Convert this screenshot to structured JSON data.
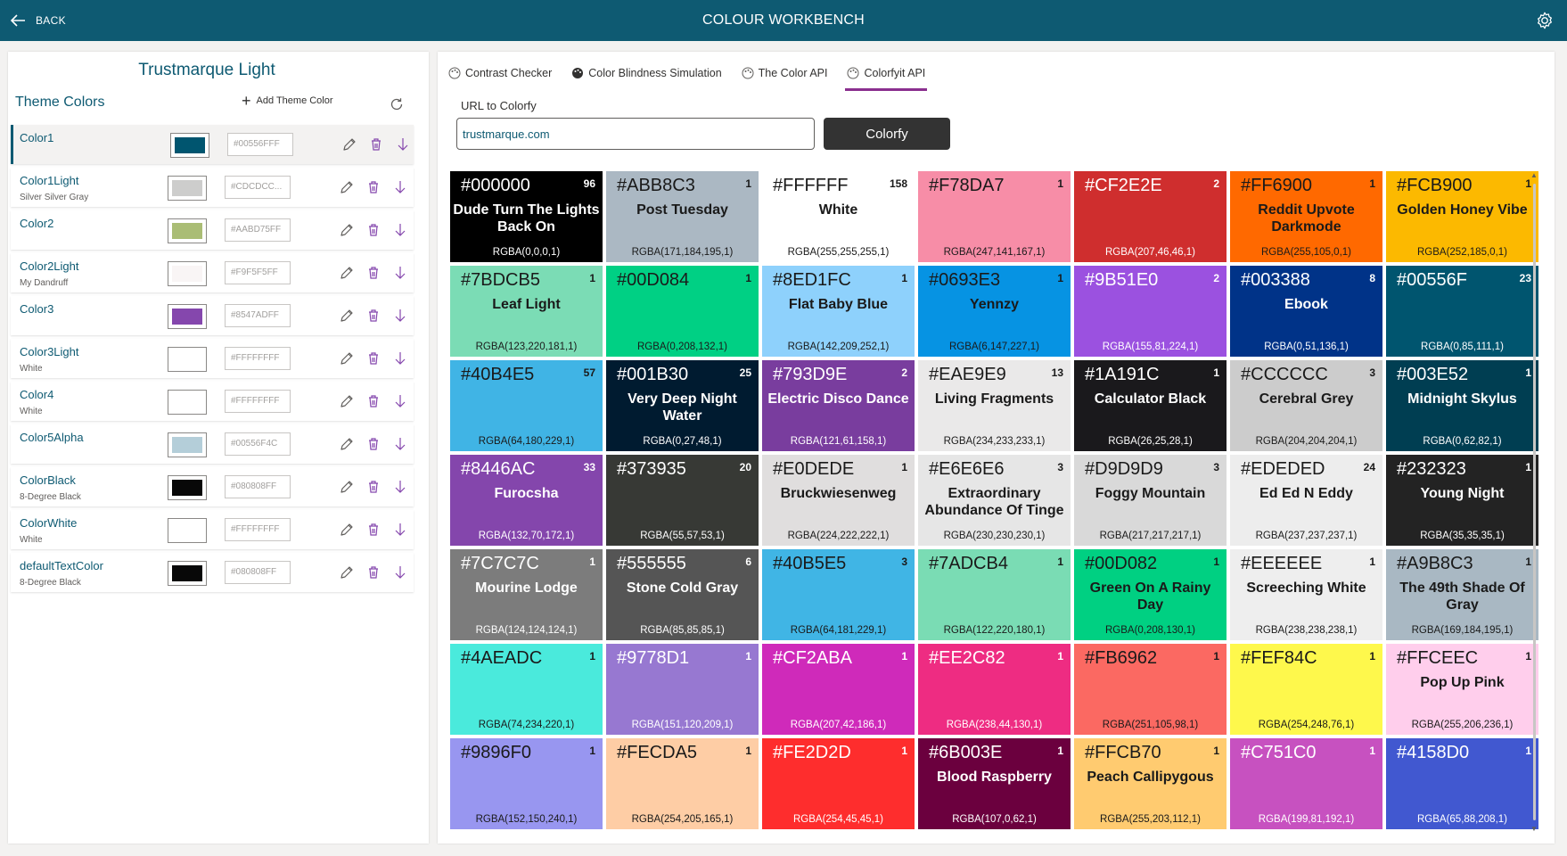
{
  "header": {
    "back_label": "BACK",
    "title": "COLOUR WORKBENCH"
  },
  "left": {
    "theme_name": "Trustmarque Light",
    "section_title": "Theme Colors",
    "add_label": "Add Theme Color",
    "rows": [
      {
        "name": "Color1",
        "sub": "",
        "swatch": "#00556F",
        "hex": "#00556FFF"
      },
      {
        "name": "Color1Light",
        "sub": "Silver Silver Gray",
        "swatch": "#CDCDCC",
        "hex": "#CDCDCC..."
      },
      {
        "name": "Color2",
        "sub": "",
        "swatch": "#AABD75",
        "hex": "#AABD75FF"
      },
      {
        "name": "Color2Light",
        "sub": "My Dandruff",
        "swatch": "#F9F5F5",
        "hex": "#F9F5F5FF"
      },
      {
        "name": "Color3",
        "sub": "",
        "swatch": "#8547AD",
        "hex": "#8547ADFF"
      },
      {
        "name": "Color3Light",
        "sub": "White",
        "swatch": "#FFFFFF",
        "hex": "#FFFFFFFF"
      },
      {
        "name": "Color4",
        "sub": "White",
        "swatch": "#FFFFFF",
        "hex": "#FFFFFFFF"
      },
      {
        "name": "Color5Alpha",
        "sub": "",
        "swatch": "#B4CED9",
        "hex": "#00556F4C"
      },
      {
        "name": "ColorBlack",
        "sub": "8-Degree Black",
        "swatch": "#080808",
        "hex": "#080808FF"
      },
      {
        "name": "ColorWhite",
        "sub": "White",
        "swatch": "#FFFFFF",
        "hex": "#FFFFFFFF"
      },
      {
        "name": "defaultTextColor",
        "sub": "8-Degree Black",
        "swatch": "#080808",
        "hex": "#080808FF"
      }
    ]
  },
  "tabs": [
    "Contrast Checker",
    "Color Blindness Simulation",
    "The Color API",
    "Colorfyit API"
  ],
  "url_label": "URL to Colorfy",
  "url_value": "trustmarque.com",
  "colorfy_label": "Colorfy",
  "colors": {
    "accent": "#0e5a72",
    "tab_underline": "#8a2f8f"
  },
  "swatches": [
    {
      "hex": "#000000",
      "count": "96",
      "name": "Dude Turn The Lights Back On",
      "rgba": "RGBA(0,0,0,1)",
      "bg": "#000000",
      "fg": "#ffffff"
    },
    {
      "hex": "#ABB8C3",
      "count": "1",
      "name": "Post Tuesday",
      "rgba": "RGBA(171,184,195,1)",
      "bg": "#ABB8C3",
      "fg": "#1a1a1a"
    },
    {
      "hex": "#FFFFFF",
      "count": "158",
      "name": "White",
      "rgba": "RGBA(255,255,255,1)",
      "bg": "#FFFFFF",
      "fg": "#1a1a1a"
    },
    {
      "hex": "#F78DA7",
      "count": "1",
      "name": "",
      "rgba": "RGBA(247,141,167,1)",
      "bg": "#F78DA7",
      "fg": "#1a1a1a"
    },
    {
      "hex": "#CF2E2E",
      "count": "2",
      "name": "",
      "rgba": "RGBA(207,46,46,1)",
      "bg": "#CF2E2E",
      "fg": "#ffffff"
    },
    {
      "hex": "#FF6900",
      "count": "1",
      "name": "Reddit Upvote Darkmode",
      "rgba": "RGBA(255,105,0,1)",
      "bg": "#FF6900",
      "fg": "#1a1a1a"
    },
    {
      "hex": "#FCB900",
      "count": "1",
      "name": "Golden Honey Vibe",
      "rgba": "RGBA(252,185,0,1)",
      "bg": "#FCB900",
      "fg": "#1a1a1a"
    },
    {
      "hex": "#7BDCB5",
      "count": "1",
      "name": "Leaf Light",
      "rgba": "RGBA(123,220,181,1)",
      "bg": "#7BDCB5",
      "fg": "#1a1a1a"
    },
    {
      "hex": "#00D084",
      "count": "1",
      "name": "",
      "rgba": "RGBA(0,208,132,1)",
      "bg": "#00D084",
      "fg": "#1a1a1a"
    },
    {
      "hex": "#8ED1FC",
      "count": "1",
      "name": "Flat Baby Blue",
      "rgba": "RGBA(142,209,252,1)",
      "bg": "#8ED1FC",
      "fg": "#1a1a1a"
    },
    {
      "hex": "#0693E3",
      "count": "1",
      "name": "Yennzy",
      "rgba": "RGBA(6,147,227,1)",
      "bg": "#0693E3",
      "fg": "#1a1a1a"
    },
    {
      "hex": "#9B51E0",
      "count": "2",
      "name": "",
      "rgba": "RGBA(155,81,224,1)",
      "bg": "#9B51E0",
      "fg": "#ffffff"
    },
    {
      "hex": "#003388",
      "count": "8",
      "name": "Ebook",
      "rgba": "RGBA(0,51,136,1)",
      "bg": "#003388",
      "fg": "#ffffff"
    },
    {
      "hex": "#00556F",
      "count": "23",
      "name": "",
      "rgba": "RGBA(0,85,111,1)",
      "bg": "#00556F",
      "fg": "#ffffff"
    },
    {
      "hex": "#40B4E5",
      "count": "57",
      "name": "",
      "rgba": "RGBA(64,180,229,1)",
      "bg": "#40B4E5",
      "fg": "#1a1a1a"
    },
    {
      "hex": "#001B30",
      "count": "25",
      "name": "Very Deep Night Water",
      "rgba": "RGBA(0,27,48,1)",
      "bg": "#001B30",
      "fg": "#ffffff"
    },
    {
      "hex": "#793D9E",
      "count": "2",
      "name": "Electric Disco Dance",
      "rgba": "RGBA(121,61,158,1)",
      "bg": "#793D9E",
      "fg": "#ffffff"
    },
    {
      "hex": "#EAE9E9",
      "count": "13",
      "name": "Living Fragments",
      "rgba": "RGBA(234,233,233,1)",
      "bg": "#EAE9E9",
      "fg": "#1a1a1a"
    },
    {
      "hex": "#1A191C",
      "count": "1",
      "name": "Calculator Black",
      "rgba": "RGBA(26,25,28,1)",
      "bg": "#1A191C",
      "fg": "#ffffff"
    },
    {
      "hex": "#CCCCCC",
      "count": "3",
      "name": "Cerebral Grey",
      "rgba": "RGBA(204,204,204,1)",
      "bg": "#CCCCCC",
      "fg": "#1a1a1a"
    },
    {
      "hex": "#003E52",
      "count": "1",
      "name": "Midnight Skylus",
      "rgba": "RGBA(0,62,82,1)",
      "bg": "#003E52",
      "fg": "#ffffff"
    },
    {
      "hex": "#8446AC",
      "count": "33",
      "name": "Furocsha",
      "rgba": "RGBA(132,70,172,1)",
      "bg": "#8446AC",
      "fg": "#ffffff"
    },
    {
      "hex": "#373935",
      "count": "20",
      "name": "",
      "rgba": "RGBA(55,57,53,1)",
      "bg": "#373935",
      "fg": "#ffffff"
    },
    {
      "hex": "#E0DEDE",
      "count": "1",
      "name": "Bruckwiesenweg",
      "rgba": "RGBA(224,222,222,1)",
      "bg": "#E0DEDE",
      "fg": "#1a1a1a"
    },
    {
      "hex": "#E6E6E6",
      "count": "3",
      "name": "Extraordinary Abundance Of Tinge",
      "rgba": "RGBA(230,230,230,1)",
      "bg": "#E6E6E6",
      "fg": "#1a1a1a"
    },
    {
      "hex": "#D9D9D9",
      "count": "3",
      "name": "Foggy Mountain",
      "rgba": "RGBA(217,217,217,1)",
      "bg": "#D9D9D9",
      "fg": "#1a1a1a"
    },
    {
      "hex": "#EDEDED",
      "count": "24",
      "name": "Ed Ed N Eddy",
      "rgba": "RGBA(237,237,237,1)",
      "bg": "#EDEDED",
      "fg": "#1a1a1a"
    },
    {
      "hex": "#232323",
      "count": "1",
      "name": "Young Night",
      "rgba": "RGBA(35,35,35,1)",
      "bg": "#232323",
      "fg": "#ffffff"
    },
    {
      "hex": "#7C7C7C",
      "count": "1",
      "name": "Mourine Lodge",
      "rgba": "RGBA(124,124,124,1)",
      "bg": "#7C7C7C",
      "fg": "#ffffff"
    },
    {
      "hex": "#555555",
      "count": "6",
      "name": "Stone Cold Gray",
      "rgba": "RGBA(85,85,85,1)",
      "bg": "#555555",
      "fg": "#ffffff"
    },
    {
      "hex": "#40B5E5",
      "count": "3",
      "name": "",
      "rgba": "RGBA(64,181,229,1)",
      "bg": "#40B5E5",
      "fg": "#1a1a1a"
    },
    {
      "hex": "#7ADCB4",
      "count": "1",
      "name": "",
      "rgba": "RGBA(122,220,180,1)",
      "bg": "#7ADCB4",
      "fg": "#1a1a1a"
    },
    {
      "hex": "#00D082",
      "count": "1",
      "name": "Green On A Rainy Day",
      "rgba": "RGBA(0,208,130,1)",
      "bg": "#00D082",
      "fg": "#1a1a1a"
    },
    {
      "hex": "#EEEEEE",
      "count": "1",
      "name": "Screeching White",
      "rgba": "RGBA(238,238,238,1)",
      "bg": "#EEEEEE",
      "fg": "#1a1a1a"
    },
    {
      "hex": "#A9B8C3",
      "count": "1",
      "name": "The 49th Shade Of Gray",
      "rgba": "RGBA(169,184,195,1)",
      "bg": "#A9B8C3",
      "fg": "#1a1a1a"
    },
    {
      "hex": "#4AEADC",
      "count": "1",
      "name": "",
      "rgba": "RGBA(74,234,220,1)",
      "bg": "#4AEADC",
      "fg": "#1a1a1a"
    },
    {
      "hex": "#9778D1",
      "count": "1",
      "name": "",
      "rgba": "RGBA(151,120,209,1)",
      "bg": "#9778D1",
      "fg": "#ffffff"
    },
    {
      "hex": "#CF2ABA",
      "count": "1",
      "name": "",
      "rgba": "RGBA(207,42,186,1)",
      "bg": "#CF2ABA",
      "fg": "#ffffff"
    },
    {
      "hex": "#EE2C82",
      "count": "1",
      "name": "",
      "rgba": "RGBA(238,44,130,1)",
      "bg": "#EE2C82",
      "fg": "#ffffff"
    },
    {
      "hex": "#FB6962",
      "count": "1",
      "name": "",
      "rgba": "RGBA(251,105,98,1)",
      "bg": "#FB6962",
      "fg": "#1a1a1a"
    },
    {
      "hex": "#FEF84C",
      "count": "1",
      "name": "",
      "rgba": "RGBA(254,248,76,1)",
      "bg": "#FEF84C",
      "fg": "#1a1a1a"
    },
    {
      "hex": "#FFCEEC",
      "count": "1",
      "name": "Pop Up Pink",
      "rgba": "RGBA(255,206,236,1)",
      "bg": "#FFCEEC",
      "fg": "#1a1a1a"
    },
    {
      "hex": "#9896F0",
      "count": "1",
      "name": "",
      "rgba": "RGBA(152,150,240,1)",
      "bg": "#9896F0",
      "fg": "#1a1a1a"
    },
    {
      "hex": "#FECDA5",
      "count": "1",
      "name": "",
      "rgba": "RGBA(254,205,165,1)",
      "bg": "#FECDA5",
      "fg": "#1a1a1a"
    },
    {
      "hex": "#FE2D2D",
      "count": "1",
      "name": "",
      "rgba": "RGBA(254,45,45,1)",
      "bg": "#FE2D2D",
      "fg": "#ffffff"
    },
    {
      "hex": "#6B003E",
      "count": "1",
      "name": "Blood  Raspberry",
      "rgba": "RGBA(107,0,62,1)",
      "bg": "#6B003E",
      "fg": "#ffffff"
    },
    {
      "hex": "#FFCB70",
      "count": "1",
      "name": "Peach Callipygous",
      "rgba": "RGBA(255,203,112,1)",
      "bg": "#FFCB70",
      "fg": "#1a1a1a"
    },
    {
      "hex": "#C751C0",
      "count": "1",
      "name": "",
      "rgba": "RGBA(199,81,192,1)",
      "bg": "#C751C0",
      "fg": "#ffffff"
    },
    {
      "hex": "#4158D0",
      "count": "1",
      "name": "",
      "rgba": "RGBA(65,88,208,1)",
      "bg": "#4158D0",
      "fg": "#ffffff"
    }
  ]
}
